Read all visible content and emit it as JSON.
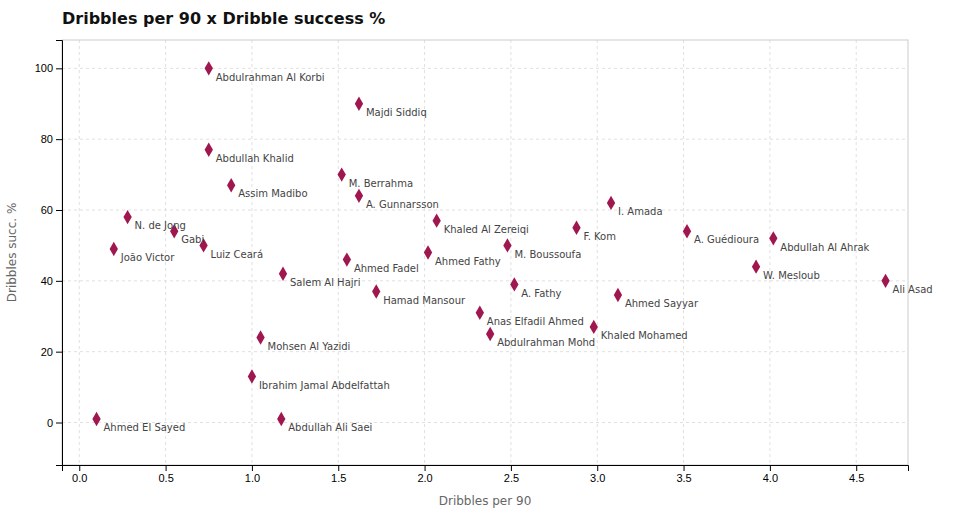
{
  "chart_data": {
    "type": "scatter",
    "title": "Dribbles per 90 x Dribble success %",
    "xlabel": "Dribbles per 90",
    "ylabel": "Dribbles succ. %",
    "marker": "diamond",
    "color": "#A0174F",
    "grid": true,
    "xlim": [
      -0.1,
      4.8
    ],
    "ylim": [
      -12,
      108
    ],
    "xticks": [
      {
        "value": 0.0,
        "label": "0.0"
      },
      0.5,
      {
        "value": 1.0,
        "label": "1.0"
      },
      1.5,
      {
        "value": 2.0,
        "label": "2.0"
      },
      2.5,
      {
        "value": 3.0,
        "label": "3.0"
      },
      3.5,
      {
        "value": 4.0,
        "label": "4.0"
      },
      4.5
    ],
    "yticks": [
      0,
      20,
      40,
      60,
      80,
      100
    ],
    "point_labels": [
      "Abdulrahman Al Korbi",
      "Majdi Siddiq",
      "Abdullah Khalid",
      "Assim Madibo",
      "M. Berrahma",
      "A. Gunnarsson",
      "N. de Jong",
      "Gabi",
      "Luiz Ceará",
      "João Victor",
      "Ahmed El Sayed",
      "Ahmed Fadel",
      "Salem Al Hajri",
      "Hamad Mansour",
      "Khaled Al Zereiqi",
      "Ahmed Fathy",
      "Mohsen Al Yazidi",
      "Ibrahim Jamal Abdelfattah",
      "Abdullah Ali Saei",
      "Anas Elfadil Ahmed",
      "Abdulrahman Mohd",
      "M. Boussoufa",
      "A. Fathy",
      "F. Kom",
      "I. Amada",
      "Khaled Mohamed",
      "Ahmed Sayyar",
      "A. Guédioura",
      "W. Mesloub",
      "Abdullah Al Ahrak",
      "Ali Asad"
    ],
    "x": [
      0.75,
      1.62,
      0.75,
      0.88,
      1.52,
      1.62,
      0.28,
      0.55,
      0.72,
      0.2,
      0.1,
      1.55,
      1.18,
      1.72,
      2.07,
      2.02,
      1.05,
      1.0,
      1.17,
      2.32,
      2.38,
      2.48,
      2.52,
      2.88,
      3.08,
      2.98,
      3.12,
      3.52,
      3.92,
      4.02,
      4.67
    ],
    "values": [
      100,
      90,
      77,
      67,
      70,
      64,
      58,
      54,
      50,
      49,
      1,
      46,
      42,
      37,
      57,
      48,
      24,
      13,
      1,
      31,
      25,
      50,
      39,
      55,
      62,
      27,
      36,
      54,
      44,
      52,
      40
    ]
  }
}
